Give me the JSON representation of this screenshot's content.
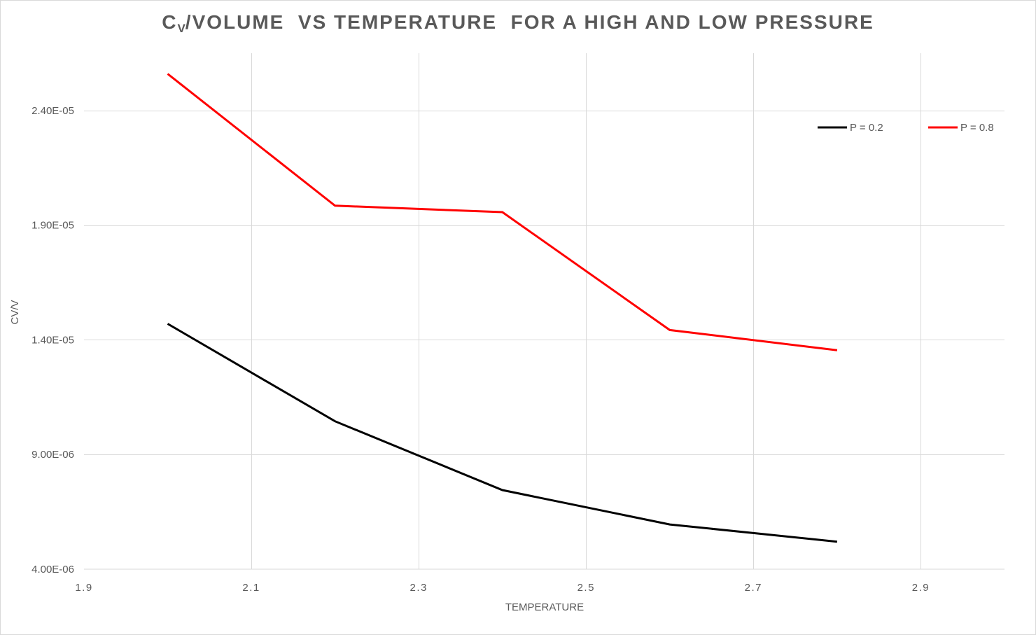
{
  "chart_data": {
    "type": "line",
    "title": {
      "main": "C",
      "subscript": "V",
      "rest": "/VOLUME  VS TEMPERATURE  FOR A HIGH AND LOW PRESSURE"
    },
    "xlabel": "TEMPERATURE",
    "ylabel": "CV/V",
    "xlim": [
      1.9,
      3.0
    ],
    "ylim": [
      4e-06,
      2.65e-05
    ],
    "x_ticks": [
      1.9,
      2.1,
      2.3,
      2.5,
      2.7,
      2.9
    ],
    "x_tick_labels": [
      "1.9",
      "2.1",
      "2.3",
      "2.5",
      "2.7",
      "2.9"
    ],
    "y_ticks": [
      4e-06,
      9e-06,
      1.4e-05,
      1.9e-05,
      2.4e-05
    ],
    "y_tick_labels": [
      "4.00E-06",
      "9.00E-06",
      "1.40E-05",
      "1.90E-05",
      "2.40E-05"
    ],
    "grid": true,
    "legend_position": "top-right",
    "series": [
      {
        "name": "P = 0.2",
        "color": "#000000",
        "x": [
          2.0,
          2.2,
          2.4,
          2.6,
          2.8
        ],
        "y": [
          1.47e-05,
          1.045e-05,
          7.45e-06,
          5.95e-06,
          5.2e-06
        ]
      },
      {
        "name": "P = 0.8",
        "color": "#ff0000",
        "x": [
          2.0,
          2.2,
          2.4,
          2.6,
          2.8
        ],
        "y": [
          2.56e-05,
          1.985e-05,
          1.957e-05,
          1.443e-05,
          1.355e-05
        ]
      }
    ]
  }
}
